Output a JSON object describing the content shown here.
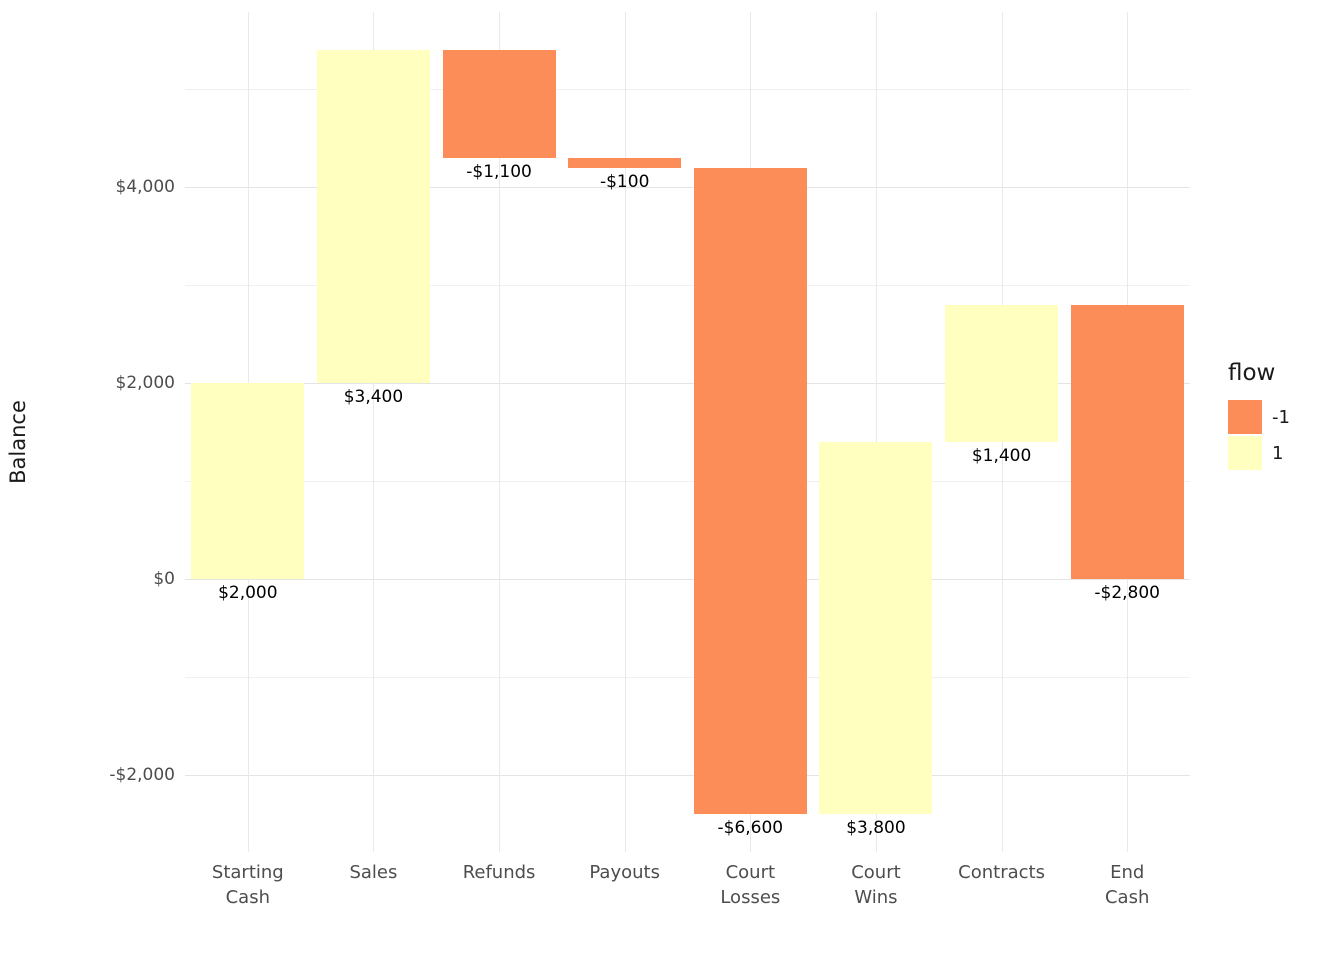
{
  "chart_data": {
    "type": "bar",
    "subtype": "waterfall",
    "title": "",
    "xlabel": "",
    "ylabel": "Balance",
    "ylim": [
      -2790,
      5790
    ],
    "grid": "on",
    "colors": {
      "flow_negative": "#FC8D59",
      "flow_positive": "#FFFFBF"
    },
    "y_ticks": [
      {
        "value": -2000,
        "label": "-$2,000"
      },
      {
        "value": 0,
        "label": "$0"
      },
      {
        "value": 2000,
        "label": "$2,000"
      },
      {
        "value": 4000,
        "label": "$4,000"
      }
    ],
    "y_minor_ticks": [
      -1000,
      1000,
      3000,
      5000
    ],
    "items": [
      {
        "category": "Starting Cash",
        "lines": [
          "Starting",
          "Cash"
        ],
        "value": 2000,
        "start": 0,
        "end": 2000,
        "flow": 1,
        "label": "$2,000"
      },
      {
        "category": "Sales",
        "lines": [
          "Sales"
        ],
        "value": 3400,
        "start": 2000,
        "end": 5400,
        "flow": 1,
        "label": "$3,400"
      },
      {
        "category": "Refunds",
        "lines": [
          "Refunds"
        ],
        "value": -1100,
        "start": 5400,
        "end": 4300,
        "flow": -1,
        "label": "-$1,100"
      },
      {
        "category": "Payouts",
        "lines": [
          "Payouts"
        ],
        "value": -100,
        "start": 4300,
        "end": 4200,
        "flow": -1,
        "label": "-$100"
      },
      {
        "category": "Court Losses",
        "lines": [
          "Court",
          "Losses"
        ],
        "value": -6600,
        "start": 4200,
        "end": -2400,
        "flow": -1,
        "label": "-$6,600"
      },
      {
        "category": "Court Wins",
        "lines": [
          "Court",
          "Wins"
        ],
        "value": 3800,
        "start": -2400,
        "end": 1400,
        "flow": 1,
        "label": "$3,800"
      },
      {
        "category": "Contracts",
        "lines": [
          "Contracts"
        ],
        "value": 1400,
        "start": 1400,
        "end": 2800,
        "flow": 1,
        "label": "$1,400"
      },
      {
        "category": "End Cash",
        "lines": [
          "End",
          "Cash"
        ],
        "value": -2800,
        "start": 2800,
        "end": 0,
        "flow": -1,
        "label": "-$2,800"
      }
    ],
    "legend": {
      "title": "flow",
      "position": "right",
      "entries": [
        {
          "label": "-1",
          "flow": -1
        },
        {
          "label": "1",
          "flow": 1
        }
      ]
    }
  }
}
